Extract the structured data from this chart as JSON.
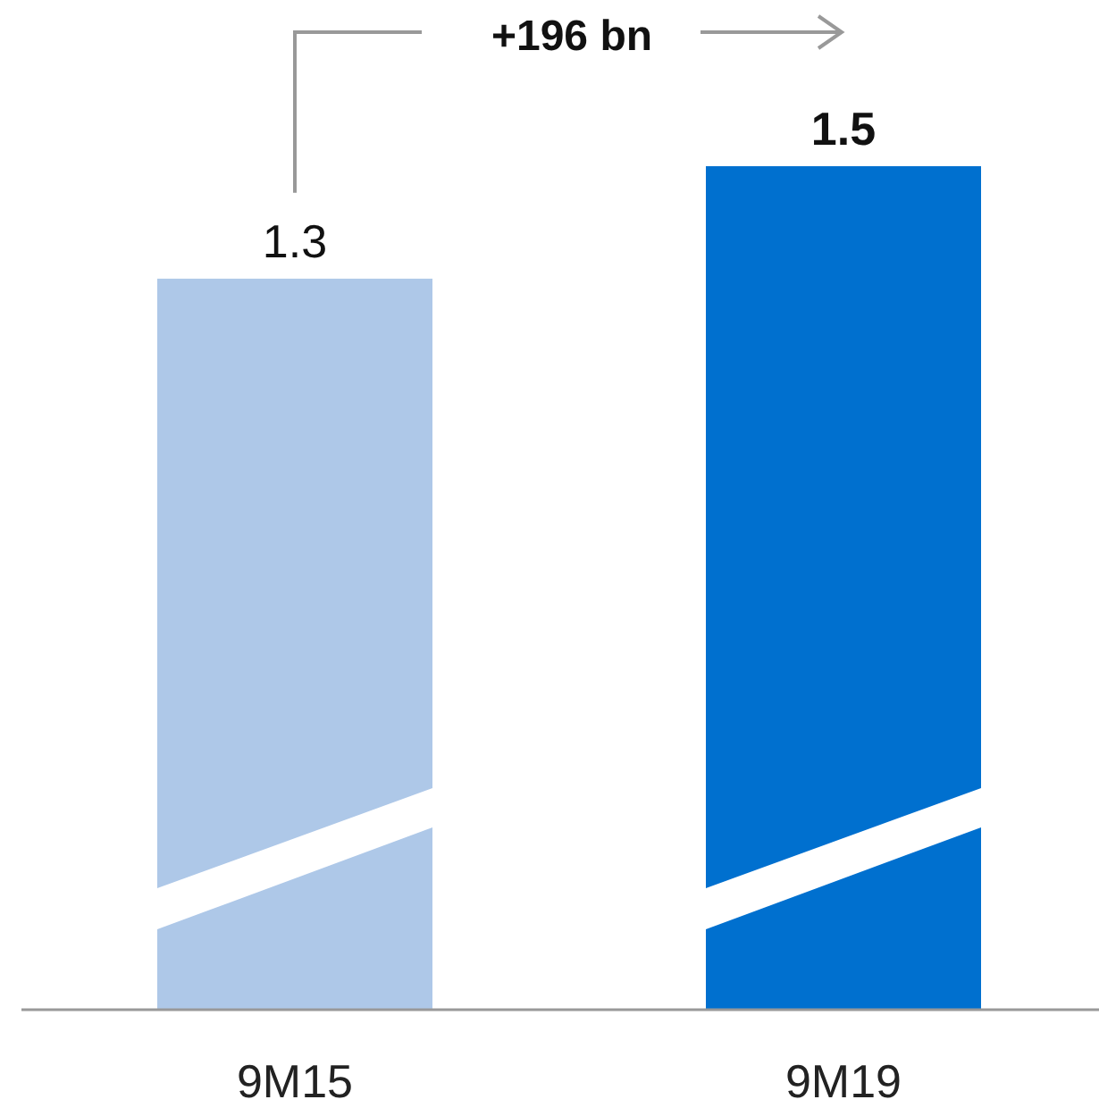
{
  "chart_data": {
    "type": "bar",
    "categories": [
      "9M15",
      "9M19"
    ],
    "values": [
      1.3,
      1.5
    ],
    "colors": [
      "#aec8e8",
      "#0070cf"
    ],
    "data_labels": true,
    "annotations": [
      "+196 bn"
    ]
  }
}
